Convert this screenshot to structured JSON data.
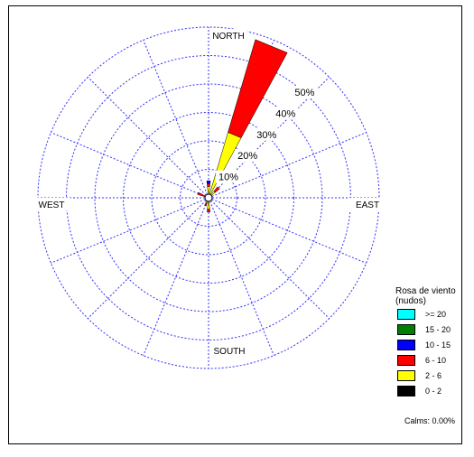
{
  "chart_data": {
    "type": "polar-bar",
    "title": "",
    "directions": [
      "N",
      "NNE",
      "NE",
      "ENE",
      "E",
      "ESE",
      "SE",
      "SSE",
      "S",
      "SSW",
      "SW",
      "WSW",
      "W",
      "WNW",
      "NW",
      "NNW"
    ],
    "compass_labels": {
      "north": "NORTH",
      "east": "EAST",
      "south": "SOUTH",
      "west": "WEST"
    },
    "ring_labels": [
      "10%",
      "20%",
      "30%",
      "40%",
      "50%"
    ],
    "rings_percent": [
      10,
      20,
      30,
      40,
      50,
      60
    ],
    "spokes": 16,
    "max_percent": 60,
    "series": [
      {
        "name": "0 - 2",
        "color": "#000000",
        "values": [
          0,
          0,
          0,
          0,
          0,
          0,
          0,
          0,
          0,
          0,
          0,
          0,
          0,
          0,
          0,
          0
        ]
      },
      {
        "name": "2 - 6",
        "color": "#ffff00",
        "values": [
          4,
          24,
          3,
          0,
          1,
          0,
          0,
          0,
          4,
          2,
          0,
          0,
          1,
          1,
          0,
          0
        ]
      },
      {
        "name": "6 - 10",
        "color": "#ff0000",
        "values": [
          1,
          34,
          2,
          0,
          0,
          0,
          0,
          0,
          1,
          1,
          0,
          1,
          0,
          3,
          1,
          0
        ]
      },
      {
        "name": "10 - 15",
        "color": "#0000ff",
        "values": [
          1,
          0,
          0,
          0,
          0,
          0,
          0,
          0,
          0,
          0,
          0,
          0,
          0,
          0,
          0,
          0
        ]
      },
      {
        "name": "15 - 20",
        "color": "#008000",
        "values": [
          0,
          0,
          0,
          0,
          0,
          0,
          0,
          0,
          0,
          0,
          0,
          0,
          0,
          0,
          0,
          0
        ]
      },
      {
        "name": ">= 20",
        "color": "#00ffff",
        "values": [
          0,
          0,
          0,
          0,
          0,
          0,
          0,
          0,
          0,
          0,
          0,
          0,
          0,
          0,
          0,
          0
        ]
      }
    ],
    "grid": true,
    "grid_color": "#3333ff",
    "legend_position": "bottom-right"
  },
  "legend": {
    "title_line1": "Rosa de viento",
    "title_line2": "(nudos)",
    "items": [
      {
        "label": ">= 20",
        "color": "#00ffff"
      },
      {
        "label": "15 - 20",
        "color": "#008000"
      },
      {
        "label": "10 - 15",
        "color": "#0000ff"
      },
      {
        "label": "6 - 10",
        "color": "#ff0000"
      },
      {
        "label": "2 - 6",
        "color": "#ffff00"
      },
      {
        "label": "0 - 2",
        "color": "#000000"
      }
    ],
    "calms": "Calms: 0.00%"
  }
}
